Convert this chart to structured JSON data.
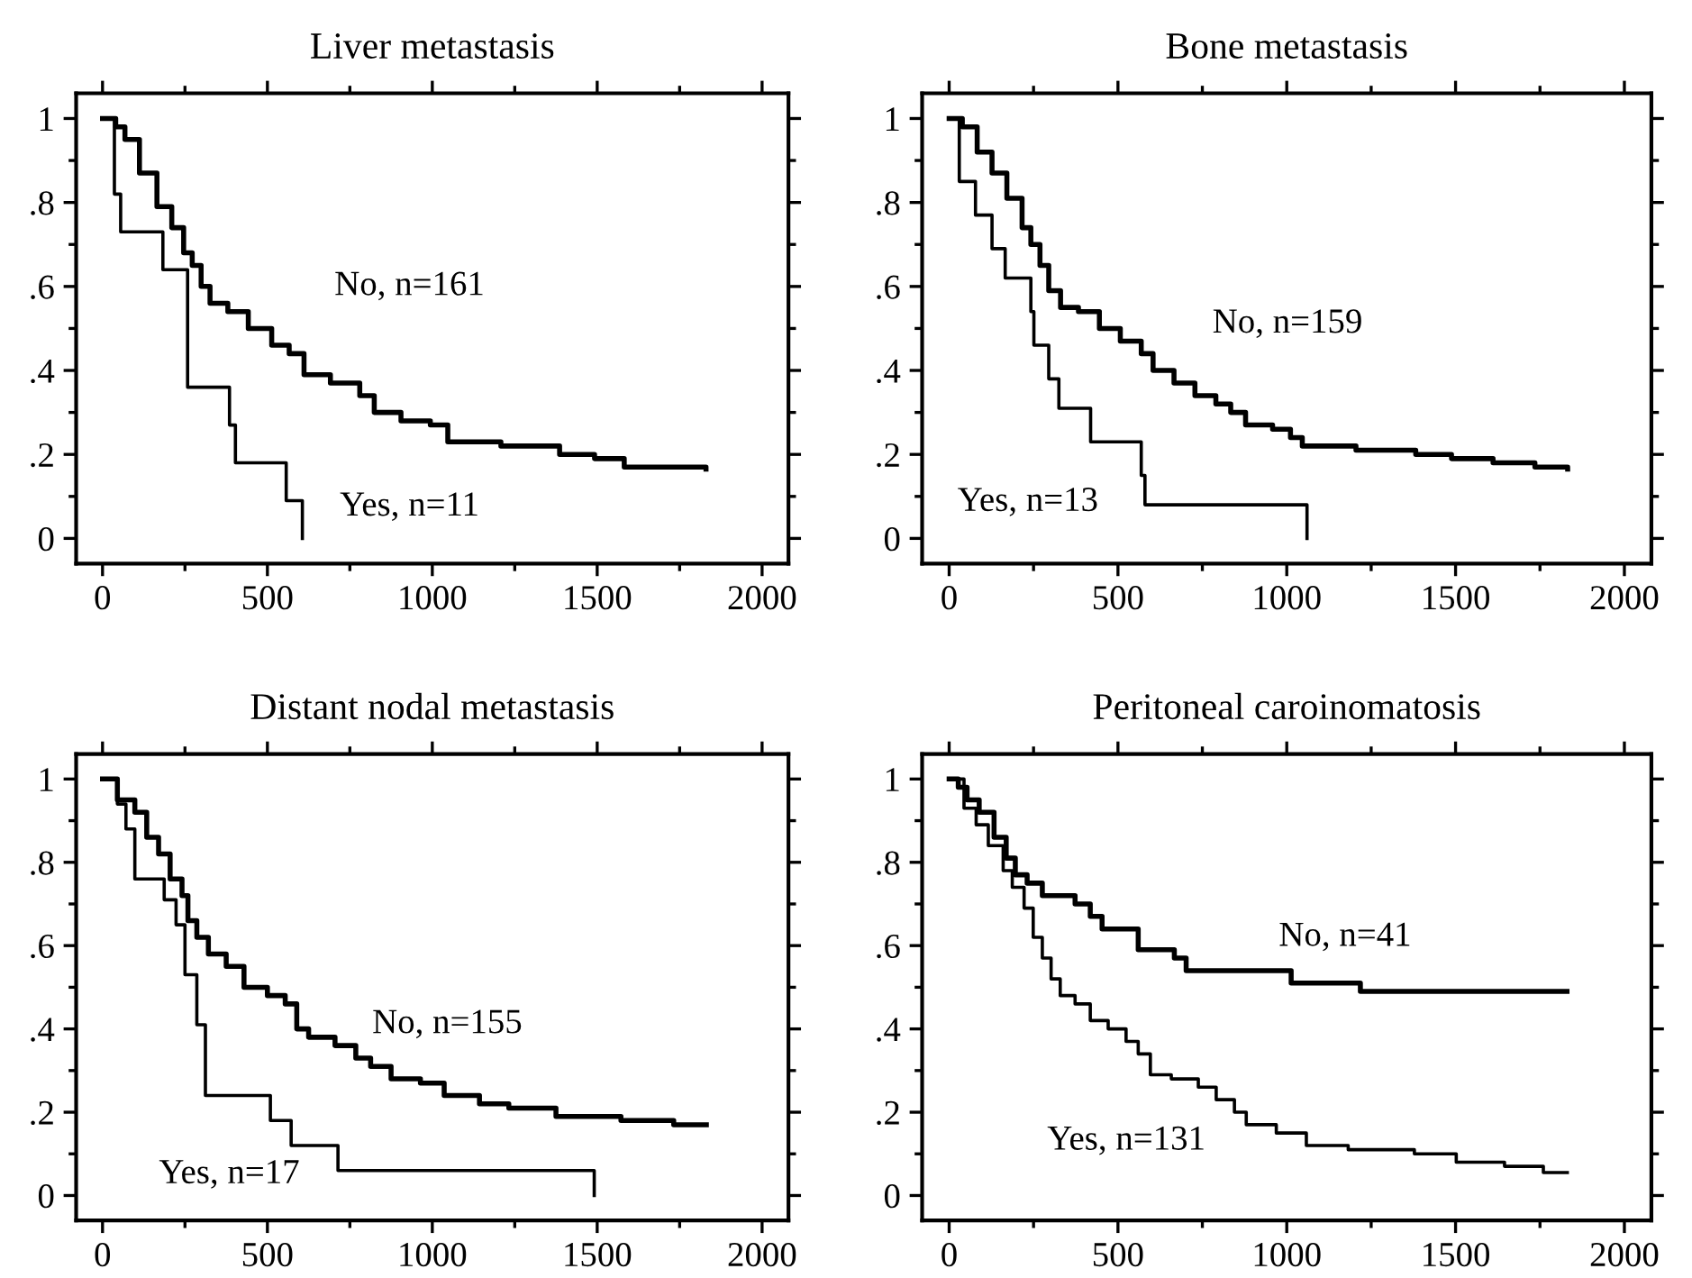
{
  "chart_data": [
    {
      "type": "step",
      "title": "Liver metastasis",
      "xlim": [
        -80,
        2080
      ],
      "ylim": [
        -0.06,
        1.06
      ],
      "xticks": [
        0,
        500,
        1000,
        1500,
        2000
      ],
      "yticks": [
        {
          "value": 0,
          "label": "0"
        },
        {
          "value": 0.2,
          "label": ".2"
        },
        {
          "value": 0.4,
          "label": ".4"
        },
        {
          "value": 0.6,
          "label": ".6"
        },
        {
          "value": 0.8,
          "label": ".8"
        },
        {
          "value": 1,
          "label": "1"
        }
      ],
      "grid": false,
      "legend": false,
      "series": [
        {
          "name": "No, n=161",
          "color": "#000000",
          "x": [
            0,
            40,
            68,
            112,
            165,
            210,
            246,
            272,
            299,
            326,
            380,
            442,
            513,
            566,
            611,
            691,
            780,
            824,
            905,
            994,
            1047,
            1208,
            1386,
            1492,
            1582,
            1830
          ],
          "values": [
            1,
            0.98,
            0.95,
            0.87,
            0.79,
            0.74,
            0.68,
            0.65,
            0.6,
            0.56,
            0.54,
            0.5,
            0.46,
            0.44,
            0.39,
            0.37,
            0.34,
            0.3,
            0.28,
            0.27,
            0.23,
            0.22,
            0.2,
            0.19,
            0.17,
            0.165
          ]
        },
        {
          "name": "Yes, n=11",
          "color": "#000000",
          "x": [
            0,
            36,
            55,
            183,
            258,
            385,
            403,
            557,
            606
          ],
          "values": [
            1,
            0.82,
            0.73,
            0.64,
            0.36,
            0.27,
            0.18,
            0.09,
            0
          ]
        }
      ]
    },
    {
      "type": "step",
      "title": "Bone metastasis",
      "xlim": [
        -80,
        2080
      ],
      "ylim": [
        -0.06,
        1.06
      ],
      "xticks": [
        0,
        500,
        1000,
        1500,
        2000
      ],
      "yticks": [
        {
          "value": 0,
          "label": "0"
        },
        {
          "value": 0.2,
          "label": ".2"
        },
        {
          "value": 0.4,
          "label": ".4"
        },
        {
          "value": 0.6,
          "label": ".6"
        },
        {
          "value": 0.8,
          "label": ".8"
        },
        {
          "value": 1,
          "label": "1"
        }
      ],
      "grid": false,
      "legend": false,
      "series": [
        {
          "name": "No, n=159",
          "color": "#000000",
          "x": [
            0,
            39,
            83,
            127,
            171,
            216,
            242,
            269,
            295,
            330,
            383,
            445,
            507,
            569,
            604,
            666,
            728,
            790,
            834,
            878,
            958,
            1011,
            1046,
            1205,
            1382,
            1488,
            1611,
            1735,
            1832
          ],
          "values": [
            1,
            0.98,
            0.92,
            0.87,
            0.81,
            0.74,
            0.7,
            0.65,
            0.59,
            0.55,
            0.54,
            0.5,
            0.47,
            0.44,
            0.4,
            0.37,
            0.34,
            0.32,
            0.3,
            0.27,
            0.26,
            0.24,
            0.22,
            0.21,
            0.2,
            0.19,
            0.18,
            0.17,
            0.165
          ]
        },
        {
          "name": "Yes, n=13",
          "color": "#000000",
          "x": [
            0,
            30,
            78,
            127,
            166,
            242,
            251,
            295,
            325,
            419,
            569,
            580,
            1060
          ],
          "values": [
            1,
            0.85,
            0.77,
            0.69,
            0.62,
            0.54,
            0.46,
            0.38,
            0.31,
            0.23,
            0.15,
            0.08,
            0
          ]
        }
      ]
    },
    {
      "type": "step",
      "title": "Distant nodal metastasis",
      "xlim": [
        -80,
        2080
      ],
      "ylim": [
        -0.06,
        1.06
      ],
      "xticks": [
        0,
        500,
        1000,
        1500,
        2000
      ],
      "yticks": [
        {
          "value": 0,
          "label": "0"
        },
        {
          "value": 0.2,
          "label": ".2"
        },
        {
          "value": 0.4,
          "label": ".4"
        },
        {
          "value": 0.6,
          "label": ".6"
        },
        {
          "value": 0.8,
          "label": ".8"
        },
        {
          "value": 1,
          "label": "1"
        }
      ],
      "grid": false,
      "legend": false,
      "series": [
        {
          "name": "No, n=155",
          "color": "#000000",
          "x": [
            0,
            45,
            98,
            134,
            170,
            205,
            241,
            259,
            286,
            321,
            375,
            429,
            500,
            554,
            589,
            625,
            705,
            768,
            813,
            875,
            964,
            1036,
            1143,
            1232,
            1375,
            1572,
            1732,
            1831
          ],
          "values": [
            1,
            0.95,
            0.92,
            0.86,
            0.82,
            0.76,
            0.72,
            0.66,
            0.62,
            0.58,
            0.55,
            0.5,
            0.48,
            0.46,
            0.4,
            0.38,
            0.36,
            0.33,
            0.31,
            0.28,
            0.27,
            0.24,
            0.22,
            0.21,
            0.19,
            0.18,
            0.17,
            0.17
          ]
        },
        {
          "name": "Yes, n=17",
          "color": "#000000",
          "x": [
            0,
            45,
            71,
            98,
            187,
            223,
            250,
            286,
            312,
            509,
            572,
            714,
            1491
          ],
          "values": [
            1,
            0.94,
            0.88,
            0.76,
            0.71,
            0.65,
            0.53,
            0.41,
            0.24,
            0.18,
            0.12,
            0.06,
            0
          ]
        }
      ]
    },
    {
      "type": "step",
      "title": "Peritoneal caroinomatosis",
      "xlim": [
        -80,
        2080
      ],
      "ylim": [
        -0.06,
        1.06
      ],
      "xticks": [
        0,
        500,
        1000,
        1500,
        2000
      ],
      "yticks": [
        {
          "value": 0,
          "label": "0"
        },
        {
          "value": 0.2,
          "label": ".2"
        },
        {
          "value": 0.4,
          "label": ".4"
        },
        {
          "value": 0.6,
          "label": ".6"
        },
        {
          "value": 0.8,
          "label": ".8"
        },
        {
          "value": 1,
          "label": "1"
        }
      ],
      "grid": false,
      "legend": false,
      "series": [
        {
          "name": "No, n=41",
          "color": "#000000",
          "x": [
            0,
            27,
            53,
            89,
            133,
            169,
            196,
            231,
            276,
            373,
            418,
            453,
            560,
            667,
            702,
            1013,
            1218,
            1830
          ],
          "values": [
            1,
            0.98,
            0.95,
            0.92,
            0.86,
            0.81,
            0.77,
            0.75,
            0.72,
            0.7,
            0.67,
            0.64,
            0.59,
            0.57,
            0.54,
            0.51,
            0.49,
            0.49
          ]
        },
        {
          "name": "Yes, n=131",
          "color": "#000000",
          "x": [
            0,
            44,
            80,
            116,
            160,
            187,
            222,
            249,
            276,
            302,
            329,
            373,
            418,
            471,
            524,
            560,
            596,
            658,
            738,
            791,
            845,
            880,
            969,
            1058,
            1182,
            1378,
            1502,
            1645,
            1760,
            1831
          ],
          "values": [
            1,
            0.93,
            0.89,
            0.84,
            0.78,
            0.74,
            0.69,
            0.62,
            0.57,
            0.52,
            0.48,
            0.46,
            0.42,
            0.4,
            0.37,
            0.34,
            0.29,
            0.28,
            0.26,
            0.23,
            0.2,
            0.17,
            0.15,
            0.12,
            0.11,
            0.1,
            0.08,
            0.07,
            0.055,
            0.055
          ]
        }
      ]
    }
  ]
}
